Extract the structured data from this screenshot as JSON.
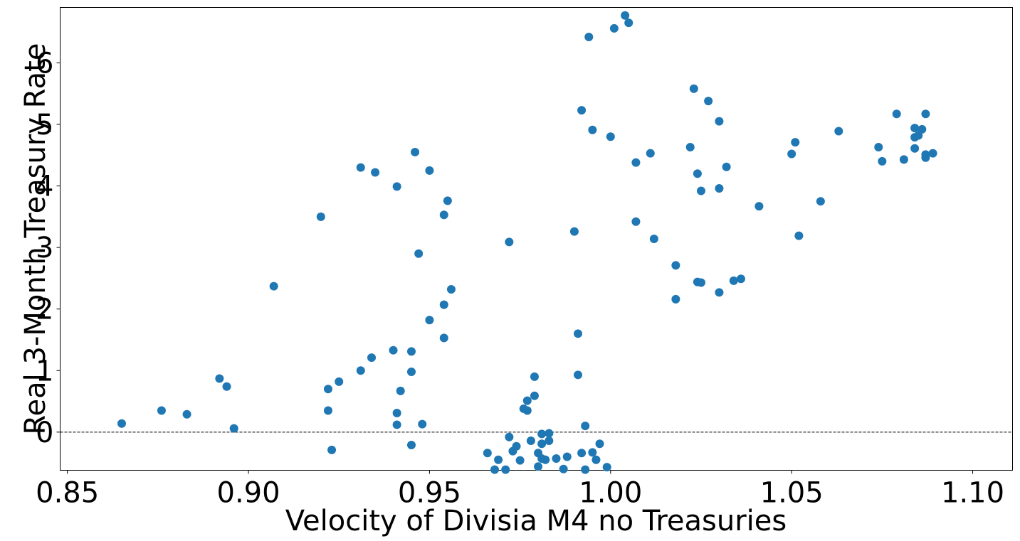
{
  "chart_data": {
    "type": "scatter",
    "xlabel": "Velocity of Divisia M4 no Treasuries",
    "ylabel": "Real 3-Month Treasury Rate",
    "xlim": [
      0.848,
      1.111
    ],
    "ylim": [
      -0.62,
      6.9
    ],
    "xticks": [
      0.85,
      0.9,
      0.95,
      1.0,
      1.05,
      1.1
    ],
    "xtick_labels": [
      "0.85",
      "0.90",
      "0.95",
      "1.00",
      "1.05",
      "1.10"
    ],
    "yticks": [
      0,
      1,
      2,
      3,
      4,
      5,
      6
    ],
    "ytick_labels": [
      "0",
      "1",
      "2",
      "3",
      "4",
      "5",
      "6"
    ],
    "reference_line": {
      "y": 0,
      "style": "dashed"
    },
    "grid": false,
    "marker_color": "#1f77b4",
    "points": [
      [
        0.865,
        0.14
      ],
      [
        0.876,
        0.35
      ],
      [
        0.883,
        0.29
      ],
      [
        0.892,
        0.87
      ],
      [
        0.894,
        0.74
      ],
      [
        0.896,
        0.06
      ],
      [
        0.907,
        2.37
      ],
      [
        0.92,
        3.5
      ],
      [
        0.922,
        0.7
      ],
      [
        0.922,
        0.35
      ],
      [
        0.923,
        -0.29
      ],
      [
        0.925,
        0.82
      ],
      [
        0.931,
        4.3
      ],
      [
        0.931,
        1.0
      ],
      [
        0.934,
        1.21
      ],
      [
        0.935,
        4.22
      ],
      [
        0.94,
        1.33
      ],
      [
        0.941,
        3.99
      ],
      [
        0.941,
        0.31
      ],
      [
        0.941,
        0.12
      ],
      [
        0.942,
        0.67
      ],
      [
        0.945,
        1.31
      ],
      [
        0.945,
        0.98
      ],
      [
        0.945,
        -0.21
      ],
      [
        0.946,
        4.55
      ],
      [
        0.947,
        2.9
      ],
      [
        0.948,
        0.13
      ],
      [
        0.95,
        4.25
      ],
      [
        0.95,
        1.82
      ],
      [
        0.954,
        3.53
      ],
      [
        0.954,
        2.07
      ],
      [
        0.954,
        1.53
      ],
      [
        0.955,
        3.76
      ],
      [
        0.956,
        2.32
      ],
      [
        0.966,
        -0.34
      ],
      [
        0.968,
        -0.61
      ],
      [
        0.969,
        -0.45
      ],
      [
        0.971,
        -0.61
      ],
      [
        0.972,
        3.09
      ],
      [
        0.972,
        -0.08
      ],
      [
        0.973,
        -0.31
      ],
      [
        0.974,
        -0.23
      ],
      [
        0.975,
        -0.46
      ],
      [
        0.976,
        0.38
      ],
      [
        0.977,
        0.51
      ],
      [
        0.977,
        0.35
      ],
      [
        0.978,
        -0.14
      ],
      [
        0.979,
        0.59
      ],
      [
        0.979,
        0.9
      ],
      [
        0.98,
        -0.34
      ],
      [
        0.98,
        -0.56
      ],
      [
        0.981,
        -0.03
      ],
      [
        0.981,
        -0.43
      ],
      [
        0.981,
        -0.19
      ],
      [
        0.982,
        -0.45
      ],
      [
        0.983,
        -0.02
      ],
      [
        0.983,
        -0.14
      ],
      [
        0.985,
        -0.43
      ],
      [
        0.987,
        -0.6
      ],
      [
        0.988,
        -0.4
      ],
      [
        0.99,
        3.26
      ],
      [
        0.991,
        1.6
      ],
      [
        0.991,
        0.93
      ],
      [
        0.992,
        5.23
      ],
      [
        0.992,
        -0.34
      ],
      [
        0.993,
        0.1
      ],
      [
        0.993,
        -0.61
      ],
      [
        0.994,
        6.42
      ],
      [
        0.995,
        -0.33
      ],
      [
        0.995,
        4.91
      ],
      [
        0.996,
        -0.45
      ],
      [
        0.997,
        -0.19
      ],
      [
        0.999,
        -0.57
      ],
      [
        1.0,
        4.8
      ],
      [
        1.001,
        6.56
      ],
      [
        1.004,
        6.77
      ],
      [
        1.005,
        6.65
      ],
      [
        1.007,
        4.38
      ],
      [
        1.007,
        3.42
      ],
      [
        1.011,
        4.53
      ],
      [
        1.012,
        3.14
      ],
      [
        1.018,
        2.71
      ],
      [
        1.018,
        2.16
      ],
      [
        1.022,
        4.63
      ],
      [
        1.023,
        5.58
      ],
      [
        1.024,
        4.2
      ],
      [
        1.024,
        2.44
      ],
      [
        1.025,
        3.92
      ],
      [
        1.025,
        2.43
      ],
      [
        1.027,
        5.38
      ],
      [
        1.03,
        5.05
      ],
      [
        1.03,
        3.96
      ],
      [
        1.03,
        2.27
      ],
      [
        1.032,
        4.31
      ],
      [
        1.034,
        2.46
      ],
      [
        1.036,
        2.49
      ],
      [
        1.041,
        3.67
      ],
      [
        1.05,
        4.52
      ],
      [
        1.051,
        4.71
      ],
      [
        1.052,
        3.19
      ],
      [
        1.058,
        3.75
      ],
      [
        1.063,
        4.89
      ],
      [
        1.074,
        4.63
      ],
      [
        1.075,
        4.4
      ],
      [
        1.079,
        5.17
      ],
      [
        1.081,
        4.43
      ],
      [
        1.084,
        4.94
      ],
      [
        1.084,
        4.61
      ],
      [
        1.084,
        4.79
      ],
      [
        1.085,
        4.82
      ],
      [
        1.086,
        4.92
      ],
      [
        1.087,
        5.17
      ],
      [
        1.087,
        4.51
      ],
      [
        1.087,
        4.46
      ],
      [
        1.089,
        4.53
      ]
    ]
  }
}
